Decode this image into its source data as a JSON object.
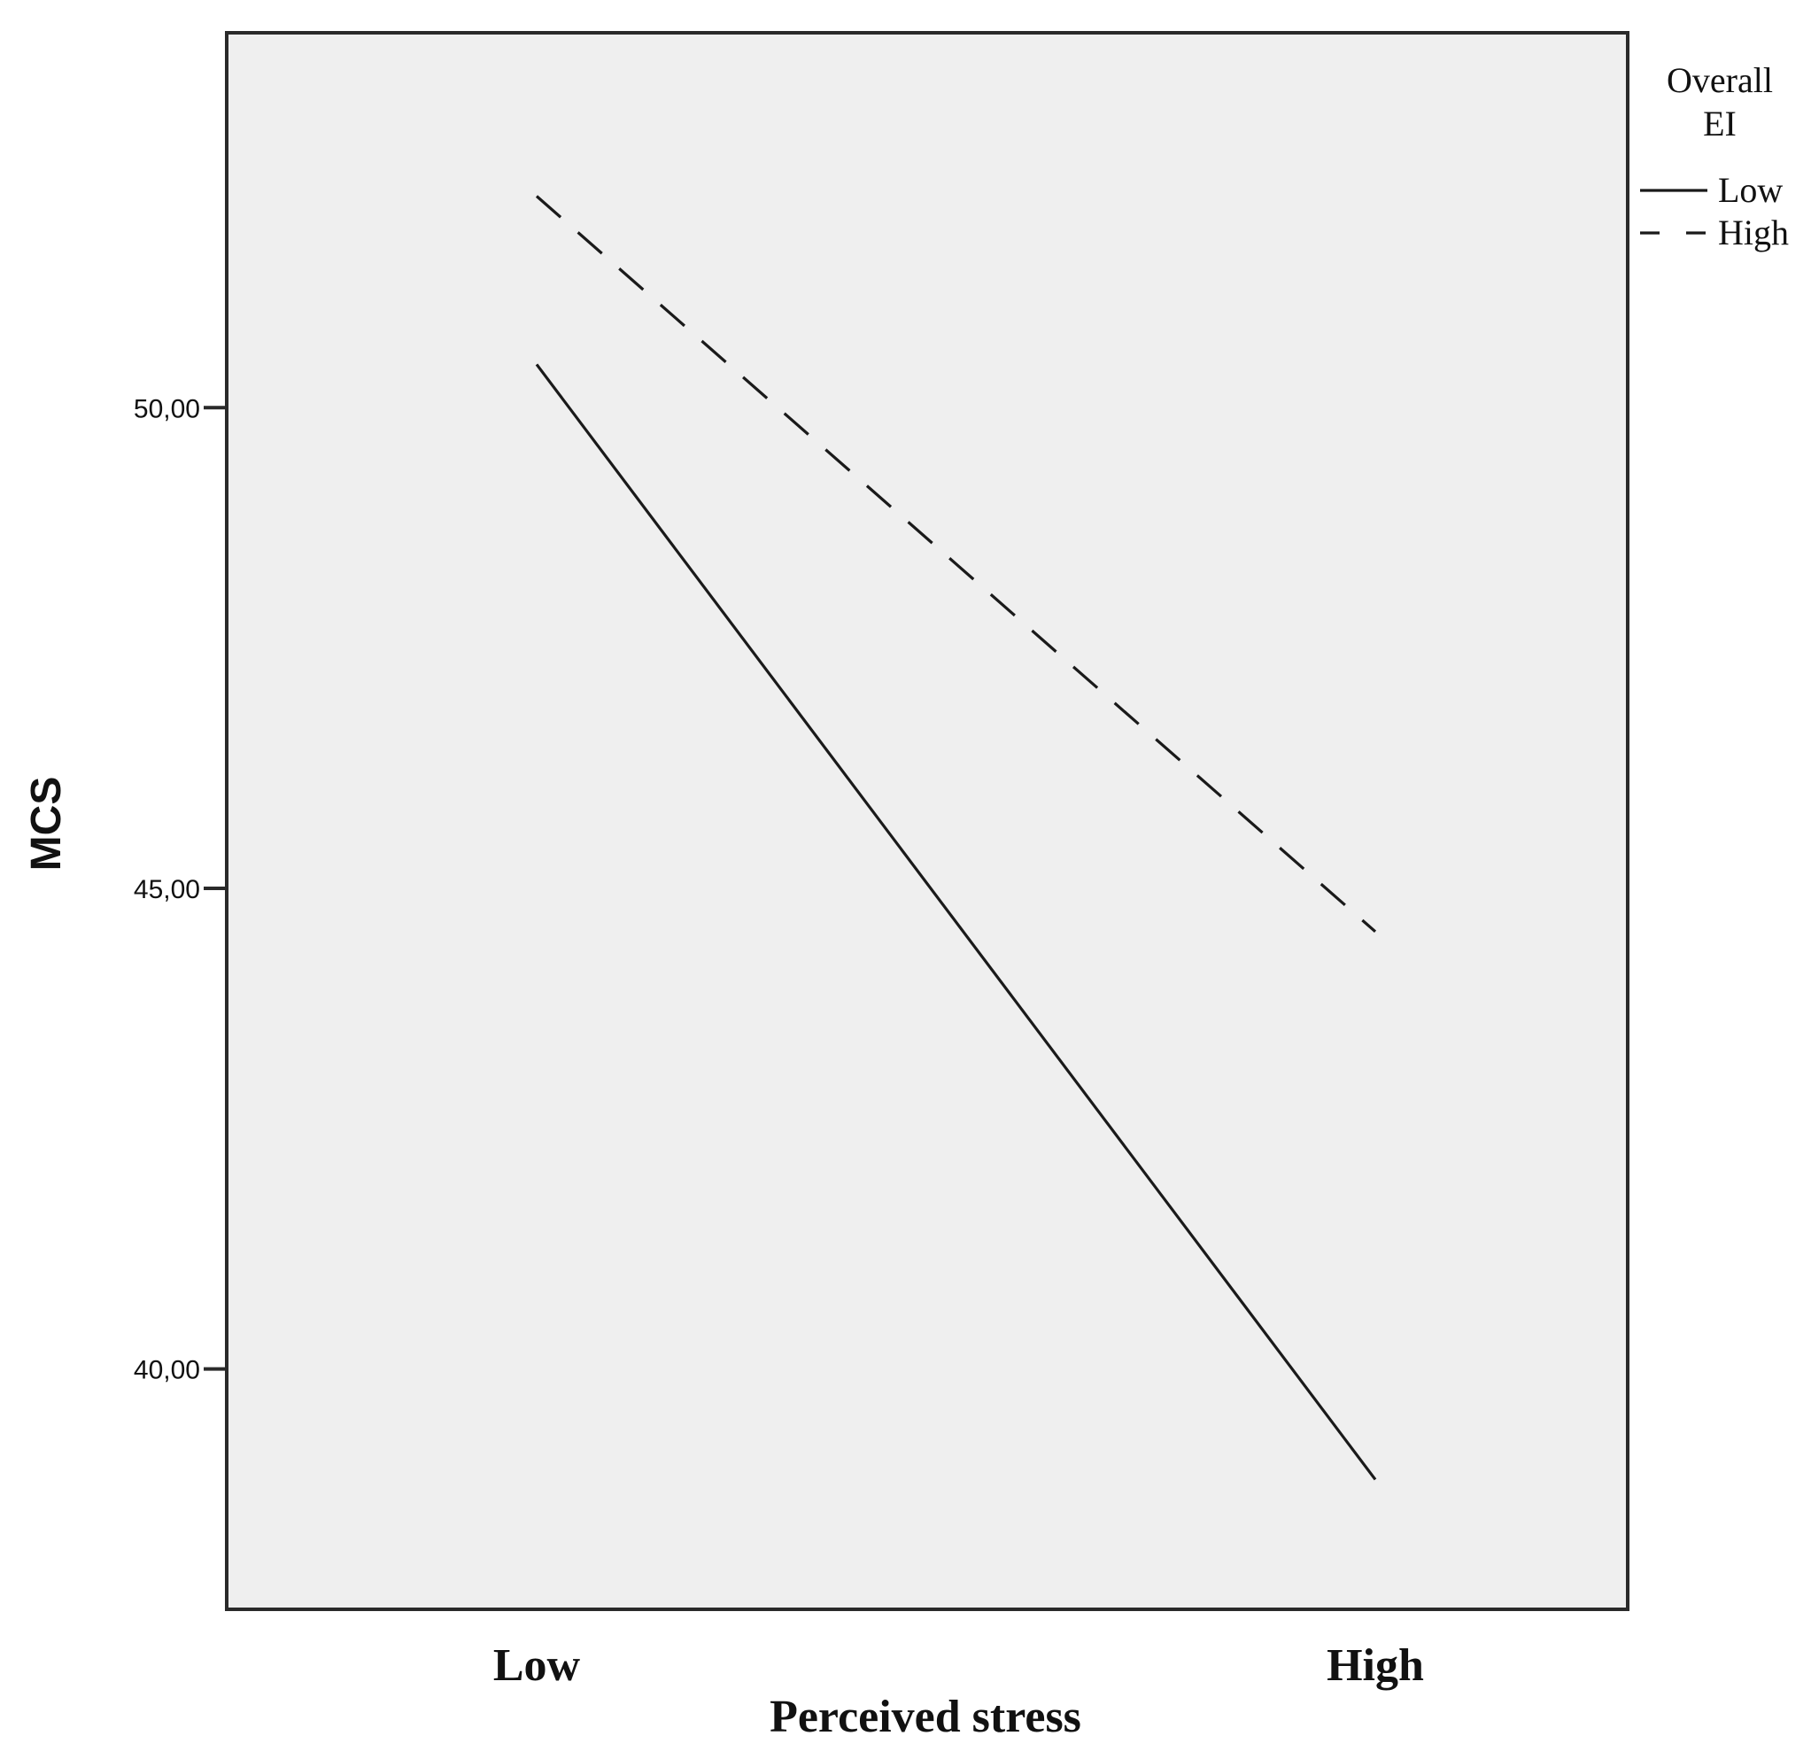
{
  "chart_data": {
    "type": "line",
    "categories": [
      "Low",
      "High"
    ],
    "xlabel": "Perceived stress",
    "ylabel": "MCS",
    "ylim": [
      37.5,
      53.9
    ],
    "yticks": [
      {
        "value": 40,
        "label": "40,00"
      },
      {
        "value": 45,
        "label": "45,00"
      },
      {
        "value": 50,
        "label": "50,00"
      }
    ],
    "grid": false,
    "legend": {
      "title_lines": [
        "Overall",
        "EI"
      ],
      "placement": "top-right outside"
    },
    "series": [
      {
        "name": "Low",
        "values": [
          50.45,
          38.85
        ],
        "style": "solid",
        "color": "#1a1a1a"
      },
      {
        "name": "High",
        "values": [
          52.2,
          44.55
        ],
        "style": "dashed",
        "color": "#1a1a1a"
      }
    ],
    "colors": {
      "plot_background": "#efefef",
      "frame": "#2a2a2a",
      "line": "#1a1a1a"
    }
  }
}
